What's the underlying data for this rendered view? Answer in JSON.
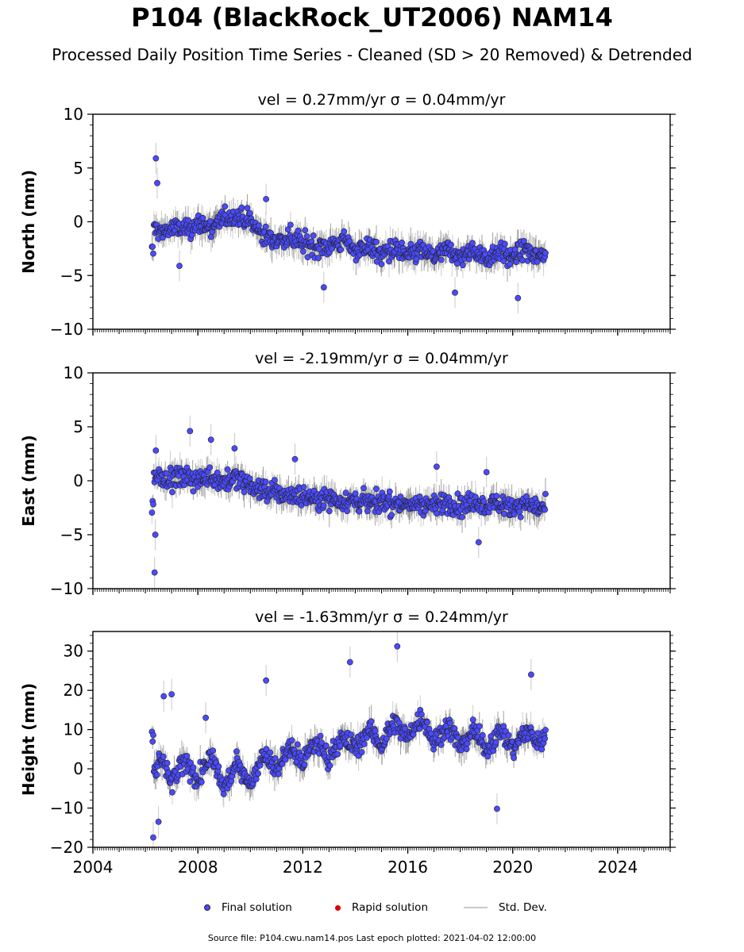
{
  "header": {
    "title": "P104 (BlackRock_UT2006) NAM14",
    "subtitle": "Processed Daily Position Time Series - Cleaned (SD > 20 Removed) & Detrended"
  },
  "legend": {
    "final_label": "Final solution",
    "rapid_label": "Rapid solution",
    "std_label": "Std. Dev."
  },
  "footer": {
    "text": "Source file: P104.cwu.nam14.pos  Last epoch plotted: 2021-04-02 12:00:00"
  },
  "colors": {
    "final_point": "#4a4aff",
    "point_edge": "#222222",
    "rapid_point": "#e00000",
    "std_dev_light": "#c8c8c8",
    "std_dev_dark": "#555555"
  },
  "chart_data": [
    {
      "type": "scatter",
      "title": "vel = 0.27mm/yr   σ = 0.04mm/yr",
      "ylabel": "North (mm)",
      "xlim": [
        2004,
        2026
      ],
      "ylim": [
        -10,
        10
      ],
      "yticks": [
        -10,
        -5,
        0,
        5,
        10
      ],
      "ytick_labels": [
        "−10",
        "−5",
        "0",
        "5",
        "10"
      ],
      "xticks": [
        2004,
        2008,
        2012,
        2016,
        2020,
        2024
      ],
      "xtick_labels": [],
      "data_span": [
        2006.25,
        2021.25
      ],
      "series": [
        {
          "x": [
            2006.3,
            2006.6,
            2007.0,
            2007.5,
            2008.0,
            2008.5,
            2009.0,
            2009.5,
            2010.0,
            2010.5,
            2011.0,
            2011.5,
            2012.0,
            2012.5,
            2013.0,
            2013.5,
            2014.0,
            2014.5,
            2015.0,
            2015.5,
            2016.0,
            2016.5,
            2017.0,
            2017.5,
            2018.0,
            2018.5,
            2019.0,
            2019.5,
            2020.0,
            2020.5,
            2021.0,
            2021.2
          ],
          "y": [
            -0.5,
            -1.0,
            -0.6,
            -0.8,
            -0.2,
            -0.5,
            0.3,
            0.5,
            0.0,
            -1.3,
            -1.8,
            -1.4,
            -2.0,
            -2.2,
            -2.3,
            -1.8,
            -2.6,
            -2.3,
            -3.0,
            -2.5,
            -3.2,
            -2.6,
            -3.3,
            -2.6,
            -3.3,
            -2.7,
            -3.4,
            -2.6,
            -3.4,
            -2.6,
            -3.3,
            -2.8
          ]
        }
      ],
      "outliers": [
        {
          "x": 2006.4,
          "y": 5.9
        },
        {
          "x": 2006.45,
          "y": 3.6
        },
        {
          "x": 2007.3,
          "y": -4.1
        },
        {
          "x": 2010.6,
          "y": 2.1
        },
        {
          "x": 2012.8,
          "y": -6.1
        },
        {
          "x": 2017.8,
          "y": -6.6
        },
        {
          "x": 2020.2,
          "y": -7.1
        }
      ]
    },
    {
      "type": "scatter",
      "title": "vel = -2.19mm/yr   σ = 0.04mm/yr",
      "ylabel": "East (mm)",
      "xlim": [
        2004,
        2026
      ],
      "ylim": [
        -10,
        10
      ],
      "yticks": [
        -10,
        -5,
        0,
        5,
        10
      ],
      "ytick_labels": [
        "−10",
        "−5",
        "0",
        "5",
        "10"
      ],
      "xticks": [
        2004,
        2008,
        2012,
        2016,
        2020,
        2024
      ],
      "xtick_labels": [],
      "data_span": [
        2006.25,
        2021.25
      ],
      "series": [
        {
          "x": [
            2006.3,
            2006.6,
            2007.0,
            2007.5,
            2008.0,
            2008.5,
            2009.0,
            2009.5,
            2010.0,
            2010.5,
            2011.0,
            2011.5,
            2012.0,
            2012.5,
            2013.0,
            2013.5,
            2014.0,
            2014.5,
            2015.0,
            2015.5,
            2016.0,
            2016.5,
            2017.0,
            2017.5,
            2018.0,
            2018.5,
            2019.0,
            2019.5,
            2020.0,
            2020.5,
            2021.0,
            2021.2
          ],
          "y": [
            0.2,
            0.5,
            0.1,
            0.3,
            0.1,
            0.4,
            -0.1,
            0.2,
            -0.5,
            -0.9,
            -1.1,
            -1.3,
            -1.4,
            -1.6,
            -1.6,
            -1.8,
            -1.9,
            -2.0,
            -2.0,
            -2.1,
            -2.3,
            -2.1,
            -2.3,
            -2.0,
            -2.4,
            -2.0,
            -2.4,
            -2.0,
            -2.4,
            -2.1,
            -2.5,
            -2.5
          ]
        }
      ],
      "outliers": [
        {
          "x": 2006.35,
          "y": -8.5
        },
        {
          "x": 2006.38,
          "y": -5.0
        },
        {
          "x": 2006.4,
          "y": 2.8
        },
        {
          "x": 2007.7,
          "y": 4.6
        },
        {
          "x": 2008.5,
          "y": 3.8
        },
        {
          "x": 2009.4,
          "y": 3.0
        },
        {
          "x": 2011.7,
          "y": 2.0
        },
        {
          "x": 2017.1,
          "y": 1.3
        },
        {
          "x": 2018.7,
          "y": -5.7
        },
        {
          "x": 2019.0,
          "y": 0.8
        }
      ]
    },
    {
      "type": "scatter",
      "title": "vel = -1.63mm/yr   σ = 0.24mm/yr",
      "ylabel": "Height (mm)",
      "xlim": [
        2004,
        2026
      ],
      "ylim": [
        -20,
        35
      ],
      "yticks": [
        -20,
        -10,
        0,
        10,
        20,
        30
      ],
      "ytick_labels": [
        "−20",
        "−10",
        "0",
        "10",
        "20",
        "30"
      ],
      "xticks": [
        2004,
        2008,
        2012,
        2016,
        2020,
        2024
      ],
      "xtick_labels": [
        "2004",
        "2008",
        "2012",
        "2016",
        "2020",
        "2024"
      ],
      "data_span": [
        2006.25,
        2021.25
      ],
      "series": [
        {
          "x": [
            2006.3,
            2006.6,
            2007.0,
            2007.5,
            2008.0,
            2008.5,
            2009.0,
            2009.5,
            2010.0,
            2010.5,
            2011.0,
            2011.5,
            2012.0,
            2012.5,
            2013.0,
            2013.5,
            2014.0,
            2014.5,
            2015.0,
            2015.5,
            2016.0,
            2016.5,
            2017.0,
            2017.5,
            2018.0,
            2018.5,
            2019.0,
            2019.5,
            2020.0,
            2020.5,
            2021.0,
            2021.2
          ],
          "y": [
            -2,
            3,
            -4,
            2,
            -3,
            3,
            -5,
            2,
            -4,
            4,
            0,
            6,
            2,
            7,
            3,
            8,
            5,
            10,
            6,
            12,
            8,
            13,
            7,
            11,
            6,
            10,
            5,
            10,
            5,
            10,
            6,
            8
          ]
        }
      ],
      "outliers": [
        {
          "x": 2006.3,
          "y": -17.5
        },
        {
          "x": 2006.5,
          "y": -13.5
        },
        {
          "x": 2006.7,
          "y": 18.5
        },
        {
          "x": 2007.0,
          "y": 19.0
        },
        {
          "x": 2008.3,
          "y": 13.0
        },
        {
          "x": 2010.6,
          "y": 22.5
        },
        {
          "x": 2013.8,
          "y": 27.2
        },
        {
          "x": 2015.6,
          "y": 31.2
        },
        {
          "x": 2019.4,
          "y": -10.2
        },
        {
          "x": 2020.7,
          "y": 24.0
        }
      ]
    }
  ]
}
